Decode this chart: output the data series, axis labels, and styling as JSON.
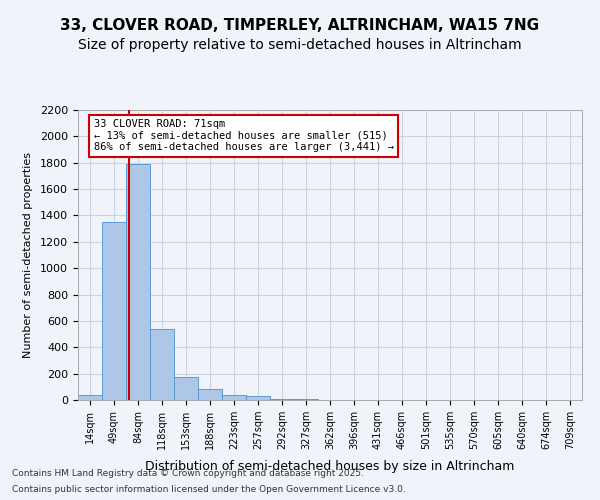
{
  "title1": "33, CLOVER ROAD, TIMPERLEY, ALTRINCHAM, WA15 7NG",
  "title2": "Size of property relative to semi-detached houses in Altrincham",
  "xlabel": "Distribution of semi-detached houses by size in Altrincham",
  "ylabel": "Number of semi-detached properties",
  "bin_labels": [
    "14sqm",
    "49sqm",
    "84sqm",
    "118sqm",
    "153sqm",
    "188sqm",
    "223sqm",
    "257sqm",
    "292sqm",
    "327sqm",
    "362sqm",
    "396sqm",
    "431sqm",
    "466sqm",
    "501sqm",
    "535sqm",
    "570sqm",
    "605sqm",
    "640sqm",
    "674sqm",
    "709sqm"
  ],
  "bar_values": [
    35,
    1350,
    1790,
    540,
    175,
    80,
    35,
    30,
    10,
    5,
    2,
    1,
    0,
    0,
    0,
    0,
    0,
    0,
    0,
    0,
    0
  ],
  "bar_color": "#aec6e8",
  "bar_edge_color": "#5b9bd5",
  "bar_width": 1.0,
  "vline_color": "#cc0000",
  "annotation_text": "33 CLOVER ROAD: 71sqm\n← 13% of semi-detached houses are smaller (515)\n86% of semi-detached houses are larger (3,441) →",
  "annotation_box_color": "#ffffff",
  "annotation_box_edge": "#cc0000",
  "ylim": [
    0,
    2200
  ],
  "yticks": [
    0,
    200,
    400,
    600,
    800,
    1000,
    1200,
    1400,
    1600,
    1800,
    2000,
    2200
  ],
  "grid_color": "#c8d4e3",
  "footer1": "Contains HM Land Registry data © Crown copyright and database right 2025.",
  "footer2": "Contains public sector information licensed under the Open Government Licence v3.0.",
  "bg_color": "#f0f4fa",
  "title_fontsize": 11,
  "subtitle_fontsize": 10
}
